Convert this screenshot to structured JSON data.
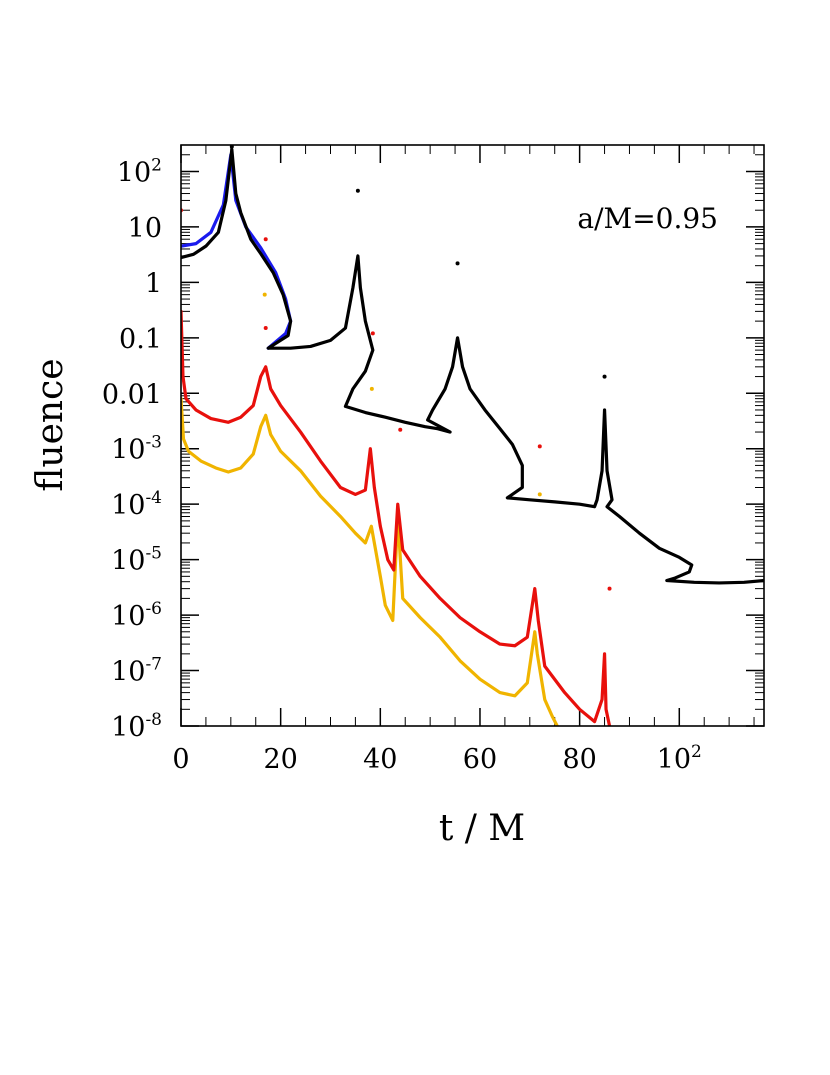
{
  "chart_data": {
    "type": "line",
    "title": "",
    "xlabel": "t / M",
    "ylabel": "fluence",
    "annotation": "a/M=0.95",
    "x_scale": "linear",
    "y_scale": "log",
    "xlim": [
      0,
      117
    ],
    "ylim": [
      1e-08,
      300
    ],
    "grid": false,
    "x_ticks": [
      {
        "value": 0,
        "label": "0",
        "exp": ""
      },
      {
        "value": 20,
        "label": "20",
        "exp": ""
      },
      {
        "value": 40,
        "label": "40",
        "exp": ""
      },
      {
        "value": 60,
        "label": "60",
        "exp": ""
      },
      {
        "value": 80,
        "label": "80",
        "exp": ""
      },
      {
        "value": 100,
        "label": "10",
        "exp": "2"
      }
    ],
    "y_ticks": [
      {
        "value": 100,
        "label": "10",
        "exp": "2"
      },
      {
        "value": 10,
        "label": "10",
        "exp": ""
      },
      {
        "value": 1,
        "label": "1",
        "exp": ""
      },
      {
        "value": 0.1,
        "label": "0.1",
        "exp": ""
      },
      {
        "value": 0.01,
        "label": "0.01",
        "exp": ""
      },
      {
        "value": 0.001,
        "label": "10",
        "exp": "-3"
      },
      {
        "value": 0.0001,
        "label": "10",
        "exp": "-4"
      },
      {
        "value": 1e-05,
        "label": "10",
        "exp": "-5"
      },
      {
        "value": 1e-06,
        "label": "10",
        "exp": "-6"
      },
      {
        "value": 1e-07,
        "label": "10",
        "exp": "-7"
      },
      {
        "value": 1e-08,
        "label": "10",
        "exp": "-8"
      }
    ],
    "series": [
      {
        "color": "#f0b400",
        "points": [
          [
            0,
            0.008
          ],
          [
            0.5,
            0.0015
          ],
          [
            1.5,
            0.0009
          ],
          [
            4,
            0.0006
          ],
          [
            7,
            0.00045
          ],
          [
            9.5,
            0.00038
          ],
          [
            12,
            0.00045
          ],
          [
            14.5,
            0.0008
          ],
          [
            16,
            0.0025
          ],
          [
            17,
            0.004
          ],
          [
            18,
            0.0018
          ],
          [
            20,
            0.0009
          ],
          [
            24,
            0.0004
          ],
          [
            28,
            0.00014
          ],
          [
            32,
            6e-05
          ],
          [
            35,
            3e-05
          ],
          [
            37,
            2e-05
          ],
          [
            38.2,
            4e-05
          ],
          [
            38.8,
            2e-05
          ],
          [
            40,
            5e-06
          ],
          [
            41,
            1.5e-06
          ],
          [
            42.5,
            8e-07
          ],
          [
            43.5,
            6e-05
          ],
          [
            44.5,
            2e-06
          ],
          [
            48,
            9e-07
          ],
          [
            52,
            4e-07
          ],
          [
            56,
            1.5e-07
          ],
          [
            60,
            7e-08
          ],
          [
            64,
            4e-08
          ],
          [
            67,
            3.5e-08
          ],
          [
            69.5,
            6e-08
          ],
          [
            71,
            5e-07
          ],
          [
            71.5,
            2e-07
          ],
          [
            73,
            3e-08
          ],
          [
            74.5,
            1.5e-08
          ],
          [
            75.5,
            1e-08
          ]
        ]
      },
      {
        "color": "#e8100c",
        "points": [
          [
            0,
            0.3
          ],
          [
            0.4,
            0.02
          ],
          [
            1,
            0.008
          ],
          [
            3,
            0.005
          ],
          [
            6,
            0.0035
          ],
          [
            9.5,
            0.003
          ],
          [
            12,
            0.0037
          ],
          [
            14.5,
            0.006
          ],
          [
            16,
            0.02
          ],
          [
            17,
            0.03
          ],
          [
            18,
            0.012
          ],
          [
            20,
            0.006
          ],
          [
            24,
            0.002
          ],
          [
            28,
            0.0006
          ],
          [
            32,
            0.0002
          ],
          [
            35,
            0.00015
          ],
          [
            37,
            0.00018
          ],
          [
            38,
            0.001
          ],
          [
            38.8,
            0.0002
          ],
          [
            40,
            4e-05
          ],
          [
            41.5,
            1e-05
          ],
          [
            42.7,
            6.5e-06
          ],
          [
            43.5,
            0.0001
          ],
          [
            44.5,
            1.5e-05
          ],
          [
            48,
            5e-06
          ],
          [
            52,
            2e-06
          ],
          [
            56,
            9e-07
          ],
          [
            60,
            5e-07
          ],
          [
            64,
            3e-07
          ],
          [
            67,
            2.8e-07
          ],
          [
            69.5,
            4e-07
          ],
          [
            71,
            3e-06
          ],
          [
            71.7,
            8e-07
          ],
          [
            73,
            1.2e-07
          ],
          [
            77,
            4e-08
          ],
          [
            80,
            2e-08
          ],
          [
            83,
            1.2e-08
          ],
          [
            84.5,
            3e-08
          ],
          [
            85,
            2e-07
          ],
          [
            85.3,
            2e-08
          ],
          [
            86,
            1e-08
          ]
        ]
      },
      {
        "color": "#1a1aee",
        "points": [
          [
            0,
            4.5
          ],
          [
            3,
            5
          ],
          [
            6,
            8
          ],
          [
            8.5,
            25
          ],
          [
            10,
            200
          ],
          [
            11,
            30
          ],
          [
            13,
            10
          ],
          [
            16,
            4.2
          ],
          [
            19,
            1.5
          ],
          [
            21,
            0.5
          ],
          [
            22,
            0.2
          ],
          [
            21,
            0.12
          ],
          [
            17.5,
            0.065
          ]
        ]
      },
      {
        "color": "#000000",
        "points": [
          [
            0,
            2.8
          ],
          [
            2.5,
            3.2
          ],
          [
            5,
            4.5
          ],
          [
            7.5,
            8
          ],
          [
            9,
            30
          ],
          [
            10.2,
            250
          ],
          [
            11,
            40
          ],
          [
            12,
            18
          ],
          [
            14,
            6
          ],
          [
            16,
            3.3
          ],
          [
            18.5,
            1.5
          ],
          [
            20.5,
            0.6
          ],
          [
            22,
            0.2
          ],
          [
            21.5,
            0.11
          ],
          [
            17.5,
            0.065
          ],
          [
            22,
            0.065
          ],
          [
            26,
            0.07
          ],
          [
            30,
            0.09
          ],
          [
            33,
            0.15
          ],
          [
            34.5,
            0.8
          ],
          [
            35.5,
            3
          ],
          [
            36,
            0.8
          ],
          [
            37,
            0.2
          ],
          [
            38.5,
            0.06
          ],
          [
            37,
            0.025
          ],
          [
            34.5,
            0.012
          ],
          [
            33,
            0.0058
          ],
          [
            37,
            0.0045
          ],
          [
            41,
            0.0037
          ],
          [
            45,
            0.003
          ],
          [
            49,
            0.0025
          ],
          [
            51.5,
            0.0023
          ],
          [
            54,
            0.002
          ],
          [
            49.5,
            0.0033
          ],
          [
            50.5,
            0.005
          ],
          [
            53,
            0.012
          ],
          [
            54.5,
            0.03
          ],
          [
            55.5,
            0.1
          ],
          [
            56.5,
            0.03
          ],
          [
            58,
            0.012
          ],
          [
            61,
            0.005
          ],
          [
            64,
            0.0023
          ],
          [
            66.5,
            0.0012
          ],
          [
            68.5,
            0.0005
          ],
          [
            68.5,
            0.0002
          ],
          [
            65.5,
            0.00013
          ],
          [
            70,
            0.00012
          ],
          [
            75,
            0.00011
          ],
          [
            80,
            0.0001
          ],
          [
            83,
            9e-05
          ],
          [
            83.5,
            0.00012
          ],
          [
            84.5,
            0.0004
          ],
          [
            85,
            0.005
          ],
          [
            85.5,
            0.0004
          ],
          [
            86.5,
            0.00012
          ],
          [
            85.5,
            9e-05
          ],
          [
            88,
            6e-05
          ],
          [
            92,
            3e-05
          ],
          [
            96,
            1.6e-05
          ],
          [
            100,
            1.1e-05
          ],
          [
            102.5,
            8e-06
          ],
          [
            102,
            6e-06
          ],
          [
            99,
            4.6e-06
          ],
          [
            97.5,
            4.2e-06
          ],
          [
            103,
            3.9e-06
          ],
          [
            108,
            3.8e-06
          ],
          [
            113,
            3.9e-06
          ],
          [
            117,
            4.2e-06
          ]
        ]
      }
    ],
    "markers": [
      {
        "color": "#e8100c",
        "x": 0,
        "y": 20
      },
      {
        "color": "#e8100c",
        "x": 17,
        "y": 6
      },
      {
        "color": "#e8100c",
        "x": 17,
        "y": 0.15
      },
      {
        "color": "#e8100c",
        "x": 38.5,
        "y": 0.12
      },
      {
        "color": "#e8100c",
        "x": 44,
        "y": 0.0022
      },
      {
        "color": "#e8100c",
        "x": 72,
        "y": 0.0011
      },
      {
        "color": "#e8100c",
        "x": 86,
        "y": 3e-06
      },
      {
        "color": "#f0b400",
        "x": 16.8,
        "y": 0.6
      },
      {
        "color": "#f0b400",
        "x": 38.3,
        "y": 0.012
      },
      {
        "color": "#f0b400",
        "x": 72,
        "y": 0.00015
      },
      {
        "color": "#000000",
        "x": 35.5,
        "y": 45
      },
      {
        "color": "#000000",
        "x": 55.5,
        "y": 2.2
      },
      {
        "color": "#000000",
        "x": 85,
        "y": 0.02
      },
      {
        "color": "#000000",
        "x": 10.2,
        "y": 280
      }
    ]
  }
}
